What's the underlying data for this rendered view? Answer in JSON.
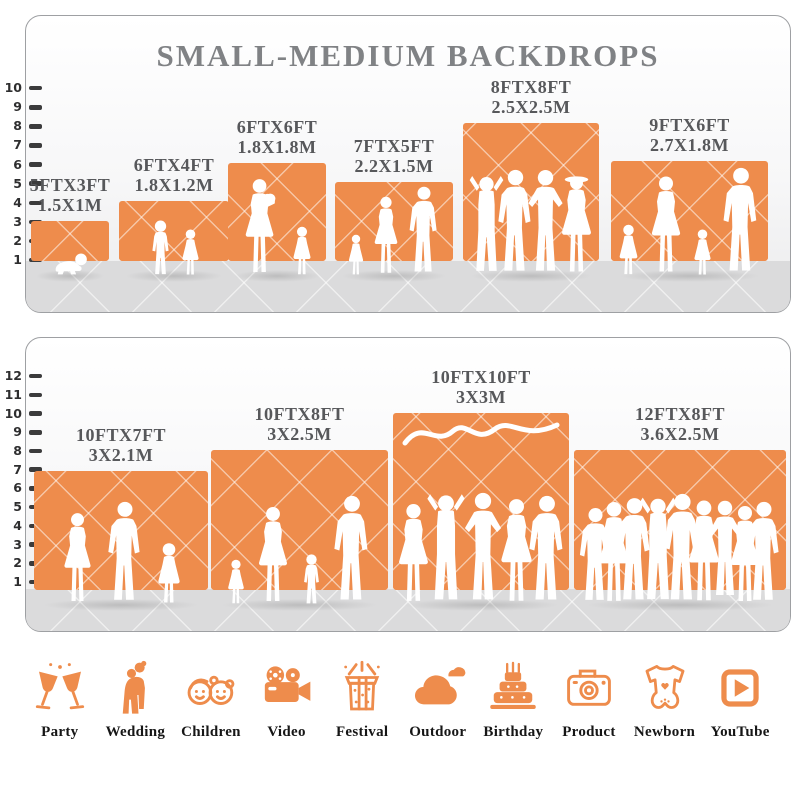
{
  "title": "SMALL-MEDIUM BACKDROPS",
  "accent_color": "#EE8C4C",
  "label_color": "#57585B",
  "panels": [
    {
      "name": "small-medium-backdrops",
      "ruler_unit": "ft",
      "ruler": [
        "10",
        "9",
        "8",
        "7",
        "6",
        "5",
        "4",
        "3",
        "2",
        "1"
      ],
      "backdrops": [
        {
          "ft": "5FTX3FT",
          "m": "1.5X1M"
        },
        {
          "ft": "6FTX4FT",
          "m": "1.8X1.2M"
        },
        {
          "ft": "6FTX6FT",
          "m": "1.8X1.8M"
        },
        {
          "ft": "7FTX5FT",
          "m": "2.2X1.5M"
        },
        {
          "ft": "8FTX8FT",
          "m": "2.5X2.5M"
        },
        {
          "ft": "9FTX6FT",
          "m": "2.7X1.8M"
        }
      ]
    },
    {
      "name": "large-backdrops",
      "ruler_unit": "ft",
      "ruler": [
        "12",
        "11",
        "10",
        "9",
        "8",
        "7",
        "6",
        "5",
        "4",
        "3",
        "2",
        "1"
      ],
      "backdrops": [
        {
          "ft": "10FTX7FT",
          "m": "3X2.1M"
        },
        {
          "ft": "10FTX8FT",
          "m": "3X2.5M"
        },
        {
          "ft": "10FTX10FT",
          "m": "3X3M"
        },
        {
          "ft": "12FTX8FT",
          "m": "3.6X2.5M"
        }
      ]
    }
  ],
  "categories": [
    {
      "label": "Party",
      "icon": "party-icon"
    },
    {
      "label": "Wedding",
      "icon": "wedding-icon"
    },
    {
      "label": "Children",
      "icon": "children-icon"
    },
    {
      "label": "Video",
      "icon": "video-icon"
    },
    {
      "label": "Festival",
      "icon": "festival-icon"
    },
    {
      "label": "Outdoor",
      "icon": "outdoor-icon"
    },
    {
      "label": "Birthday",
      "icon": "birthday-icon"
    },
    {
      "label": "Product",
      "icon": "product-icon"
    },
    {
      "label": "Newborn",
      "icon": "newborn-icon"
    },
    {
      "label": "YouTube",
      "icon": "youtube-icon"
    }
  ]
}
